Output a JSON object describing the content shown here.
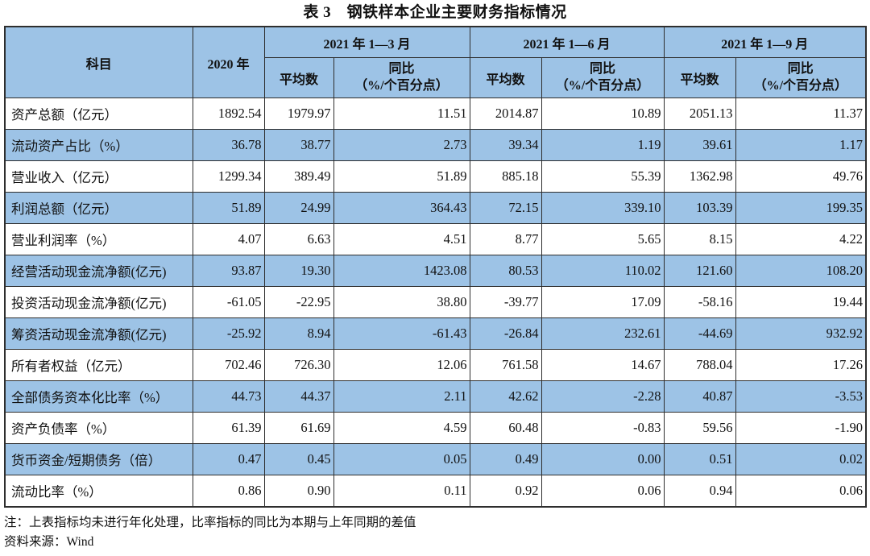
{
  "title": "表 3　钢铁样本企业主要财务指标情况",
  "colors": {
    "header_bg": "#9DC3E6",
    "alt_row_bg": "#9DC3E6",
    "border": "#2e2e2e",
    "text": "#111111"
  },
  "table": {
    "header": {
      "subject": "科目",
      "year2020": "2020 年",
      "groups": [
        {
          "label": "2021 年 1—3 月"
        },
        {
          "label": "2021 年 1—6 月"
        },
        {
          "label": "2021 年 1—9 月"
        }
      ],
      "avg_label": "平均数",
      "yoy_line1": "同比",
      "yoy_line2": "（%/个百分点）"
    },
    "rows": [
      {
        "label": "资产总额（亿元）",
        "values": [
          "1892.54",
          "1979.97",
          "11.51",
          "2014.87",
          "10.89",
          "2051.13",
          "11.37"
        ]
      },
      {
        "label": "流动资产占比（%）",
        "values": [
          "36.78",
          "38.77",
          "2.73",
          "39.34",
          "1.19",
          "39.61",
          "1.17"
        ]
      },
      {
        "label": "营业收入（亿元）",
        "values": [
          "1299.34",
          "389.49",
          "51.89",
          "885.18",
          "55.39",
          "1362.98",
          "49.76"
        ]
      },
      {
        "label": "利润总额（亿元）",
        "values": [
          "51.89",
          "24.99",
          "364.43",
          "72.15",
          "339.10",
          "103.39",
          "199.35"
        ]
      },
      {
        "label": "营业利润率（%）",
        "values": [
          "4.07",
          "6.63",
          "4.51",
          "8.77",
          "5.65",
          "8.15",
          "4.22"
        ]
      },
      {
        "label": "经营活动现金流净额(亿元)",
        "values": [
          "93.87",
          "19.30",
          "1423.08",
          "80.53",
          "110.02",
          "121.60",
          "108.20"
        ]
      },
      {
        "label": "投资活动现金流净额(亿元)",
        "values": [
          "-61.05",
          "-22.95",
          "38.80",
          "-39.77",
          "17.09",
          "-58.16",
          "19.44"
        ]
      },
      {
        "label": "筹资活动现金流净额(亿元)",
        "values": [
          "-25.92",
          "8.94",
          "-61.43",
          "-26.84",
          "232.61",
          "-44.69",
          "932.92"
        ]
      },
      {
        "label": "所有者权益（亿元）",
        "values": [
          "702.46",
          "726.30",
          "12.06",
          "761.58",
          "14.67",
          "788.04",
          "17.26"
        ]
      },
      {
        "label": "全部债务资本化比率（%）",
        "values": [
          "44.73",
          "44.37",
          "2.11",
          "42.62",
          "-2.28",
          "40.87",
          "-3.53"
        ]
      },
      {
        "label": "资产负债率（%）",
        "values": [
          "61.39",
          "61.69",
          "4.59",
          "60.48",
          "-0.83",
          "59.56",
          "-1.90"
        ]
      },
      {
        "label": "货币资金/短期债务（倍）",
        "values": [
          "0.47",
          "0.45",
          "0.05",
          "0.49",
          "0.00",
          "0.51",
          "0.02"
        ]
      },
      {
        "label": "流动比率（%）",
        "values": [
          "0.86",
          "0.90",
          "0.11",
          "0.92",
          "0.06",
          "0.94",
          "0.06"
        ]
      }
    ]
  },
  "notes": {
    "note": "注：上表指标均未进行年化处理，比率指标的同比为本期与上年同期的差值",
    "source": "资料来源：Wind"
  }
}
